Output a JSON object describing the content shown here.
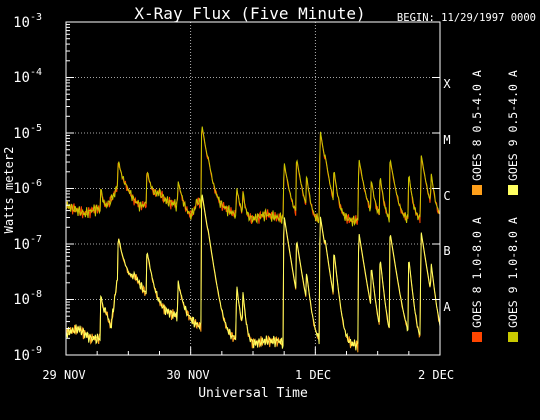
{
  "chart_data": {
    "type": "line",
    "title": "X-Ray Flux (Five Minute)",
    "begin_label": "BEGIN: 11/29/1997 0000",
    "xlabel": "Universal Time",
    "ylabel": "Watts meter2",
    "y_scale": "log",
    "ylim": [
      1e-09,
      0.001
    ],
    "y_tick_labels": [
      {
        "base": "10",
        "exp": "-9"
      },
      {
        "base": "10",
        "exp": "-8"
      },
      {
        "base": "10",
        "exp": "-7"
      },
      {
        "base": "10",
        "exp": "-6"
      },
      {
        "base": "10",
        "exp": "-5"
      },
      {
        "base": "10",
        "exp": "-4"
      },
      {
        "base": "10",
        "exp": "-3"
      }
    ],
    "x_range_days": [
      0,
      3
    ],
    "x_tick_labels": [
      "29 NOV",
      "30 NOV",
      "1 DEC",
      "2 DEC"
    ],
    "class_labels": [
      {
        "label": "A",
        "level": 1e-08
      },
      {
        "label": "B",
        "level": 1e-07
      },
      {
        "label": "C",
        "level": 1e-06
      },
      {
        "label": "M",
        "level": 1e-05
      },
      {
        "label": "X",
        "level": 0.0001
      }
    ],
    "grid": "dotted, at class levels and day boundaries",
    "legend_position": "right, vertical",
    "series": [
      {
        "name": "GOES 8 1.0-8.0 A",
        "color": "#ff4500",
        "band": "long",
        "offset": 0.0
      },
      {
        "name": "GOES 8 0.5-4.0 A",
        "color": "#ff9f1a",
        "band": "short",
        "offset": 0.0
      },
      {
        "name": "GOES 9 1.0-8.0 A",
        "color": "#c8c800",
        "band": "long",
        "offset": 0.06
      },
      {
        "name": "GOES 9 0.5-4.0 A",
        "color": "#ffff60",
        "band": "short",
        "offset": 0.06
      }
    ],
    "long_band_keypoints": [
      [
        0.0,
        5e-07
      ],
      [
        0.08,
        4.2e-07
      ],
      [
        0.15,
        3.5e-07
      ],
      [
        0.25,
        4.5e-07
      ],
      [
        0.3,
        3.5e-07
      ],
      [
        0.4,
        9e-07
      ],
      [
        0.42,
        1.5e-06
      ],
      [
        0.45,
        8e-07
      ],
      [
        0.55,
        5e-07
      ],
      [
        0.6,
        4.5e-07
      ],
      [
        0.7,
        6e-07
      ],
      [
        0.75,
        8e-07
      ],
      [
        0.8,
        6e-07
      ],
      [
        0.9,
        5e-07
      ],
      [
        0.95,
        3.5e-07
      ],
      [
        1.0,
        3e-07
      ],
      [
        1.03,
        4e-07
      ],
      [
        1.05,
        6e-07
      ],
      [
        1.1,
        5e-07
      ],
      [
        1.2,
        5e-07
      ],
      [
        1.3,
        4e-07
      ],
      [
        1.4,
        3e-07
      ],
      [
        1.5,
        2.8e-07
      ],
      [
        1.6,
        3.5e-07
      ],
      [
        1.7,
        3e-07
      ],
      [
        1.8,
        2.8e-07
      ],
      [
        1.9,
        2.5e-07
      ],
      [
        2.0,
        2.5e-07
      ],
      [
        2.1,
        3e-07
      ],
      [
        2.2,
        3e-07
      ],
      [
        2.3,
        2.6e-07
      ],
      [
        2.4,
        2.8e-07
      ],
      [
        2.5,
        3e-07
      ],
      [
        2.6,
        2.5e-07
      ],
      [
        2.7,
        2.5e-07
      ],
      [
        2.8,
        2.8e-07
      ],
      [
        2.9,
        2.5e-07
      ],
      [
        3.0,
        2.8e-07
      ]
    ],
    "short_band_keypoints": [
      [
        0.0,
        2.5e-09
      ],
      [
        0.1,
        3e-09
      ],
      [
        0.2,
        2e-09
      ],
      [
        0.28,
        2e-09
      ],
      [
        0.32,
        5e-09
      ],
      [
        0.36,
        3e-09
      ],
      [
        0.4,
        1.5e-08
      ],
      [
        0.42,
        3e-08
      ],
      [
        0.45,
        8e-09
      ],
      [
        0.5,
        1e-08
      ],
      [
        0.55,
        2e-08
      ],
      [
        0.6,
        1.5e-08
      ],
      [
        0.7,
        8e-09
      ],
      [
        0.8,
        6e-09
      ],
      [
        0.9,
        5e-09
      ],
      [
        1.0,
        4e-09
      ],
      [
        1.1,
        3e-09
      ],
      [
        1.2,
        2.5e-09
      ],
      [
        1.3,
        2e-09
      ],
      [
        1.4,
        1.8e-09
      ],
      [
        1.5,
        1.6e-09
      ],
      [
        1.6,
        1.8e-09
      ],
      [
        1.7,
        1.8e-09
      ],
      [
        1.8,
        1.5e-09
      ],
      [
        1.9,
        1.5e-09
      ],
      [
        2.0,
        1.5e-09
      ],
      [
        2.1,
        1.6e-09
      ],
      [
        2.2,
        1.5e-09
      ],
      [
        2.3,
        1.5e-09
      ],
      [
        2.4,
        1.5e-09
      ],
      [
        2.5,
        1.6e-09
      ],
      [
        2.6,
        1.5e-09
      ],
      [
        2.7,
        1.5e-09
      ],
      [
        2.8,
        1.6e-09
      ],
      [
        2.9,
        1.5e-09
      ],
      [
        3.0,
        1.5e-09
      ]
    ],
    "flares": [
      {
        "t": 0.28,
        "long": 6e-07,
        "short": 1e-08,
        "width": 0.02
      },
      {
        "t": 0.42,
        "long": 1.5e-06,
        "short": 1e-07,
        "width": 0.05
      },
      {
        "t": 0.65,
        "long": 1.5e-06,
        "short": 6e-08,
        "width": 0.03
      },
      {
        "t": 0.9,
        "long": 8e-07,
        "short": 1.5e-08,
        "width": 0.03
      },
      {
        "t": 1.09,
        "long": 1.3e-05,
        "short": 8e-07,
        "width": 0.03
      },
      {
        "t": 1.14,
        "long": 7e-07,
        "short": 2e-08,
        "width": 0.02
      },
      {
        "t": 1.37,
        "long": 7e-07,
        "short": 1.5e-08,
        "width": 0.02
      },
      {
        "t": 1.42,
        "long": 5e-07,
        "short": 1e-08,
        "width": 0.015
      },
      {
        "t": 1.75,
        "long": 2.5e-06,
        "short": 3e-07,
        "width": 0.03
      },
      {
        "t": 1.85,
        "long": 3e-06,
        "short": 1e-07,
        "width": 0.03
      },
      {
        "t": 1.93,
        "long": 1.2e-06,
        "short": 2e-08,
        "width": 0.02
      },
      {
        "t": 2.04,
        "long": 1e-05,
        "short": 3e-07,
        "width": 0.03
      },
      {
        "t": 2.08,
        "long": 8e-07,
        "short": 3e-08,
        "width": 0.02
      },
      {
        "t": 2.15,
        "long": 1.5e-06,
        "short": 6e-08,
        "width": 0.02
      },
      {
        "t": 2.35,
        "long": 3e-06,
        "short": 1.5e-07,
        "width": 0.03
      },
      {
        "t": 2.45,
        "long": 1e-06,
        "short": 3e-08,
        "width": 0.02
      },
      {
        "t": 2.52,
        "long": 1.3e-06,
        "short": 5e-08,
        "width": 0.02
      },
      {
        "t": 2.6,
        "long": 3e-06,
        "short": 1.5e-07,
        "width": 0.03
      },
      {
        "t": 2.75,
        "long": 1.5e-06,
        "short": 5e-08,
        "width": 0.02
      },
      {
        "t": 2.85,
        "long": 3.5e-06,
        "short": 1.5e-07,
        "width": 0.03
      },
      {
        "t": 2.93,
        "long": 1.3e-06,
        "short": 3e-08,
        "width": 0.02
      }
    ]
  }
}
